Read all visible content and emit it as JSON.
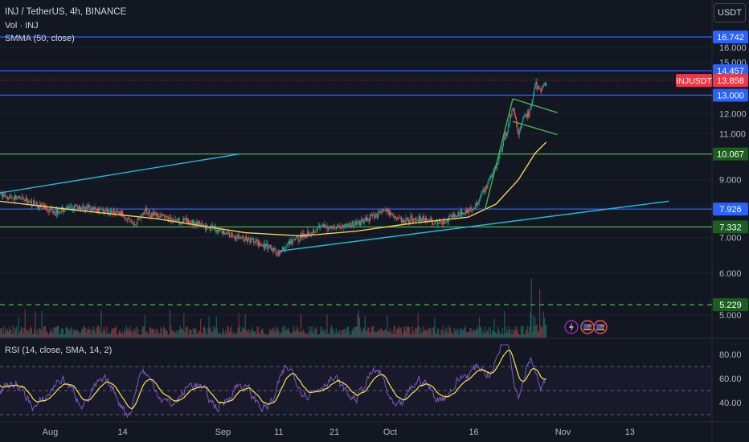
{
  "header": {
    "symbol_line": "INJ / TetherUS, 4h, BINANCE",
    "volume_label": "Vol · INJ",
    "smma_label": "SMMA (50, close)",
    "rsi_label": "RSI (14, close, SMA, 14, 2)",
    "currency_button": "USDT"
  },
  "colors": {
    "background": "#131722",
    "candle_up": "#26a69a",
    "candle_down": "#ef5350",
    "smma": "#f7d250",
    "rsi_line": "#7e57c2",
    "rsi_ma": "#f7e34a",
    "horizontal_blue": "#2962ff",
    "horizontal_green": "#4caf50",
    "trend_cyan": "#22b8d9",
    "channel_green": "#4caf50",
    "price_tag_red": "#f23645"
  },
  "icons": [
    "lightning-icon",
    "us-flag-event-icon",
    "us-flag-event-icon-2"
  ],
  "chart_data": {
    "type": "candlestick",
    "title": "INJ / TetherUS, 4h, BINANCE",
    "price_axis": {
      "ticks": [
        "16.000",
        "15.000",
        "14.000",
        "12.000",
        "11.000",
        "9.000",
        "8.000",
        "7.000",
        "6.000",
        "5.000"
      ],
      "scale": "log"
    },
    "time_axis": {
      "ticks": [
        "Aug",
        "14",
        "Sep",
        "11",
        "21",
        "Oct",
        "16",
        "Nov",
        "13"
      ]
    },
    "price_labels": [
      {
        "text": "16.742",
        "kind": "line-blue",
        "value": 16.742
      },
      {
        "text": "14.457",
        "kind": "line-blue",
        "value": 14.457
      },
      {
        "text": "13.858",
        "kind": "last-price",
        "value": 13.858,
        "name": "INJUSDT"
      },
      {
        "text": "13.000",
        "kind": "line-blue",
        "value": 13.0
      },
      {
        "text": "10.067",
        "kind": "line-green",
        "value": 10.067
      },
      {
        "text": "7.926",
        "kind": "line-blue",
        "value": 7.926
      },
      {
        "text": "7.332",
        "kind": "line-green",
        "value": 7.332
      },
      {
        "text": "5.229",
        "kind": "line-green-dashed",
        "value": 5.229
      }
    ],
    "price_path": [
      [
        "2023-07-23",
        8.45
      ],
      [
        "2023-07-28",
        8.2
      ],
      [
        "2023-08-02",
        7.85
      ],
      [
        "2023-08-06",
        8.0
      ],
      [
        "2023-08-10",
        7.9
      ],
      [
        "2023-08-14",
        7.75
      ],
      [
        "2023-08-16",
        7.4
      ],
      [
        "2023-08-18",
        7.85
      ],
      [
        "2023-08-22",
        7.6
      ],
      [
        "2023-08-26",
        7.5
      ],
      [
        "2023-08-30",
        7.3
      ],
      [
        "2023-09-03",
        7.05
      ],
      [
        "2023-09-08",
        6.8
      ],
      [
        "2023-09-11",
        6.55
      ],
      [
        "2023-09-14",
        6.95
      ],
      [
        "2023-09-18",
        7.3
      ],
      [
        "2023-09-22",
        7.35
      ],
      [
        "2023-09-26",
        7.5
      ],
      [
        "2023-09-30",
        7.9
      ],
      [
        "2023-10-03",
        7.55
      ],
      [
        "2023-10-07",
        7.6
      ],
      [
        "2023-10-10",
        7.45
      ],
      [
        "2023-10-13",
        7.75
      ],
      [
        "2023-10-16",
        7.95
      ],
      [
        "2023-10-18",
        8.7
      ],
      [
        "2023-10-20",
        9.5
      ],
      [
        "2023-10-22",
        11.2
      ],
      [
        "2023-10-23",
        12.3
      ],
      [
        "2023-10-24",
        11.0
      ],
      [
        "2023-10-25",
        11.8
      ],
      [
        "2023-10-26",
        12.0
      ],
      [
        "2023-10-27",
        13.6
      ],
      [
        "2023-10-28",
        13.2
      ],
      [
        "2023-10-29",
        13.858
      ]
    ],
    "smma_path": [
      [
        "2023-07-23",
        8.2
      ],
      [
        "2023-08-05",
        7.9
      ],
      [
        "2023-08-20",
        7.6
      ],
      [
        "2023-09-05",
        7.15
      ],
      [
        "2023-09-15",
        7.05
      ],
      [
        "2023-09-25",
        7.2
      ],
      [
        "2023-10-05",
        7.45
      ],
      [
        "2023-10-15",
        7.65
      ],
      [
        "2023-10-20",
        8.1
      ],
      [
        "2023-10-24",
        9.0
      ],
      [
        "2023-10-27",
        10.1
      ],
      [
        "2023-10-29",
        10.6
      ]
    ],
    "drawings": {
      "trendline_cyan_upper": [
        [
          "2023-07-23",
          8.5
        ],
        [
          "2023-09-04",
          10.07
        ]
      ],
      "trendline_cyan_lower": [
        [
          "2023-09-11",
          6.6
        ],
        [
          "2023-11-20",
          8.2
        ]
      ],
      "channel_green": [
        [
          [
            "2023-10-18",
            7.9
          ],
          [
            "2023-10-23",
            12.8
          ]
        ],
        [
          [
            "2023-10-23",
            12.8
          ],
          [
            "2023-10-31",
            12.05
          ]
        ],
        [
          [
            "2023-10-23",
            11.6
          ],
          [
            "2023-10-31",
            10.95
          ]
        ]
      ]
    },
    "rsi": {
      "levels": [
        70,
        50,
        30
      ],
      "ticks": [
        "80.00",
        "60.00",
        "40.00"
      ],
      "last_rsi": 72,
      "last_ma": 71
    }
  }
}
